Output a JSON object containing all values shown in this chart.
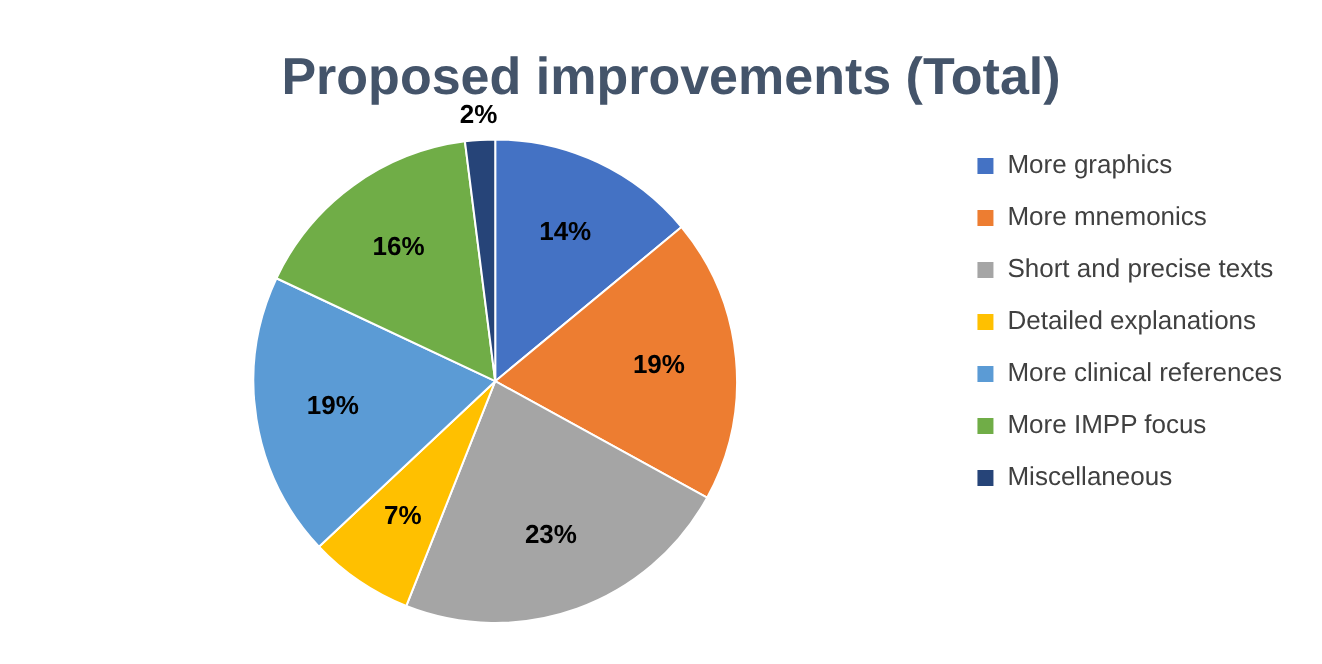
{
  "chart_data": {
    "type": "pie",
    "title": "Proposed improvements (Total)",
    "categories": [
      "More graphics",
      "More mnemonics",
      "Short and precise texts",
      "Detailed explanations",
      "More clinical references",
      "More IMPP focus",
      "Miscellaneous"
    ],
    "values": [
      14,
      19,
      23,
      7,
      19,
      16,
      2
    ],
    "colors": [
      "#4472c4",
      "#ed7d31",
      "#a5a5a5",
      "#ffc000",
      "#5b9bd5",
      "#70ad47",
      "#264478"
    ],
    "value_labels": [
      "14%",
      "19%",
      "23%",
      "7%",
      "19%",
      "16%",
      "2%"
    ],
    "legend": "right"
  }
}
